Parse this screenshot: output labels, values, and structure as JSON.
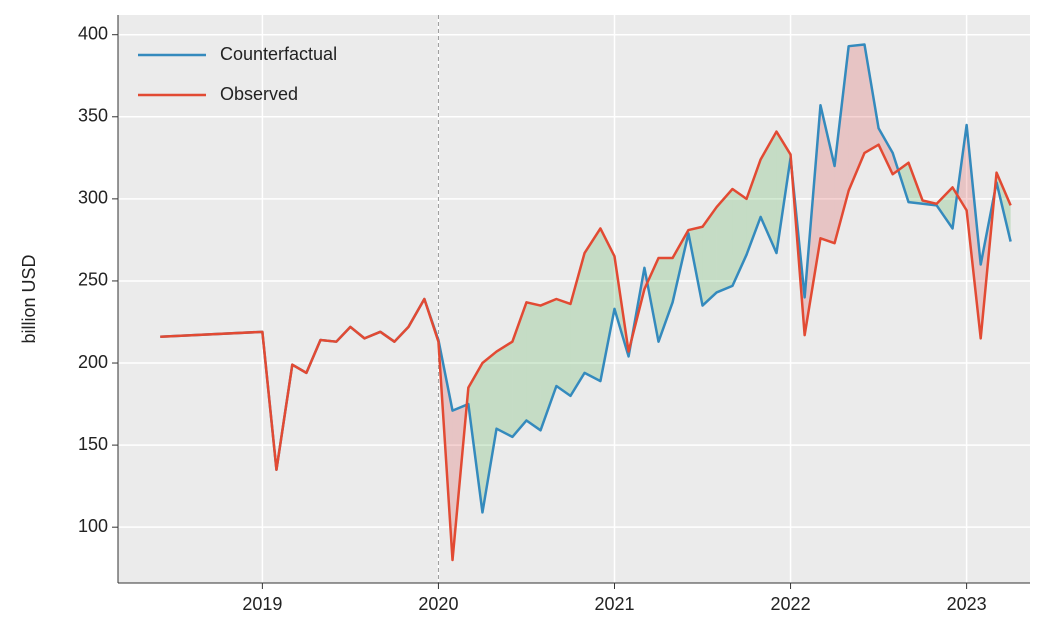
{
  "chart_data": {
    "type": "line",
    "y_label": "billion USD",
    "x": [
      2018.42,
      2019.0,
      2019.08,
      2019.17,
      2019.25,
      2019.33,
      2019.42,
      2019.5,
      2019.58,
      2019.67,
      2019.75,
      2019.83,
      2019.92,
      2020.0,
      2020.08,
      2020.17,
      2020.25,
      2020.33,
      2020.42,
      2020.5,
      2020.58,
      2020.67,
      2020.75,
      2020.83,
      2020.92,
      2021.0,
      2021.08,
      2021.17,
      2021.25,
      2021.33,
      2021.42,
      2021.5,
      2021.58,
      2021.67,
      2021.75,
      2021.83,
      2021.92,
      2022.0,
      2022.08,
      2022.17,
      2022.25,
      2022.33,
      2022.42,
      2022.5,
      2022.58,
      2022.67,
      2022.75,
      2022.83,
      2022.92,
      2023.0,
      2023.08,
      2023.17,
      2023.25
    ],
    "series": [
      {
        "name": "Counterfactual",
        "color": "#348abd",
        "values": [
          216,
          219,
          135,
          199,
          194,
          214,
          213,
          222,
          215,
          219,
          213,
          222,
          239,
          214,
          171,
          175,
          109,
          160,
          155,
          165,
          159,
          186,
          180,
          194,
          189,
          233,
          204,
          258,
          213,
          237,
          279,
          235,
          243,
          247,
          266,
          289,
          267,
          325,
          240,
          357,
          320,
          393,
          394,
          343,
          328,
          298,
          297,
          296,
          282,
          345,
          260,
          310,
          274
        ]
      },
      {
        "name": "Observed",
        "color": "#e24a33",
        "values": [
          216,
          219,
          135,
          199,
          194,
          214,
          213,
          222,
          215,
          219,
          213,
          222,
          239,
          213,
          80,
          185,
          200,
          207,
          213,
          237,
          235,
          239,
          236,
          267,
          282,
          265,
          207,
          245,
          264,
          264,
          281,
          283,
          295,
          306,
          300,
          324,
          341,
          327,
          217,
          276,
          273,
          305,
          328,
          333,
          315,
          322,
          299,
          297,
          307,
          293,
          215,
          316,
          296
        ]
      }
    ],
    "fill_between": {
      "above_color": "#2ca02c",
      "below_color": "#d62728",
      "opacity": 0.2
    },
    "vline": 2020,
    "xlim": [
      2018.18,
      2023.36
    ],
    "xticks": [
      2019,
      2020,
      2021,
      2022,
      2023
    ],
    "ylim": [
      66,
      412
    ],
    "yticks": [
      100,
      150,
      200,
      250,
      300,
      350,
      400
    ],
    "grid": true,
    "legend": "upper left"
  }
}
